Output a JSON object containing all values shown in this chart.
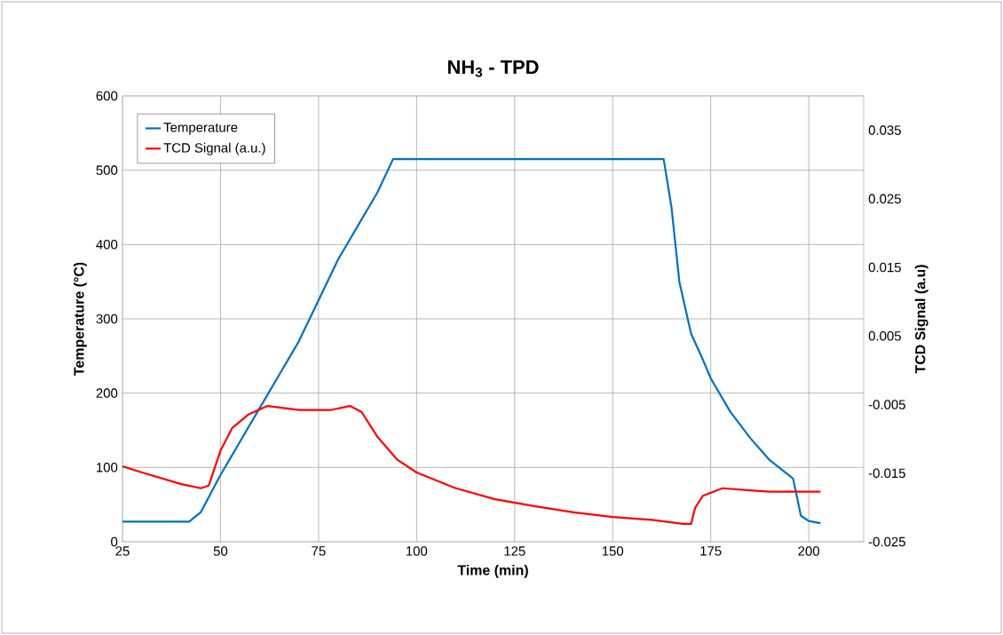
{
  "chart_data": {
    "type": "line",
    "title": "NH$_{3}$ - TPD",
    "xlabel": "Time (min)",
    "ylabel": "Temperature (°C)",
    "y2label": "TCD Signal (a.u)",
    "xlim": [
      25,
      214
    ],
    "xticks": [
      25,
      50,
      75,
      100,
      125,
      150,
      175,
      200
    ],
    "ylim": [
      0,
      600
    ],
    "yticks": [
      0,
      100,
      200,
      300,
      400,
      500,
      600
    ],
    "y2lim": [
      -0.025,
      0.04
    ],
    "y2ticks": [
      -0.025,
      -0.015,
      -0.005,
      0.005,
      0.015,
      0.025,
      0.035
    ],
    "grid": true,
    "legend": "top left",
    "marker": "none",
    "line_style": "solid",
    "series": [
      {
        "name": "Temperature",
        "color": "#0070c0",
        "x": [
          25,
          42,
          45,
          50,
          55,
          60,
          65,
          70,
          75,
          80,
          85,
          90,
          94,
          100,
          120,
          140,
          163,
          165,
          167,
          170,
          173,
          175,
          180,
          185,
          190,
          196,
          197,
          198,
          200,
          203
        ],
        "values": [
          27,
          27,
          40,
          90,
          135,
          180,
          225,
          270,
          325,
          380,
          425,
          470,
          515,
          515,
          515,
          515,
          515,
          450,
          350,
          280,
          245,
          220,
          175,
          140,
          110,
          85,
          60,
          35,
          28,
          25
        ]
      },
      {
        "name": "TCD Signal (a.u.)",
        "color": "#ff0000",
        "axis": "y2",
        "x": [
          25,
          30,
          40,
          45,
          47,
          50,
          53,
          57,
          62,
          70,
          78,
          83,
          86,
          90,
          95,
          100,
          110,
          120,
          130,
          140,
          150,
          160,
          168,
          170,
          171,
          173,
          178,
          185,
          190,
          195,
          203
        ],
        "values": [
          -0.014,
          -0.0149,
          -0.0166,
          -0.0172,
          -0.0168,
          -0.0117,
          -0.0084,
          -0.0065,
          -0.0052,
          -0.0058,
          -0.0058,
          -0.0052,
          -0.0061,
          -0.0097,
          -0.013,
          -0.0149,
          -0.0172,
          -0.0188,
          -0.0198,
          -0.0207,
          -0.0214,
          -0.0218,
          -0.0224,
          -0.0224,
          -0.0201,
          -0.0183,
          -0.0172,
          -0.0175,
          -0.0177,
          -0.0177,
          -0.0177
        ]
      }
    ]
  }
}
